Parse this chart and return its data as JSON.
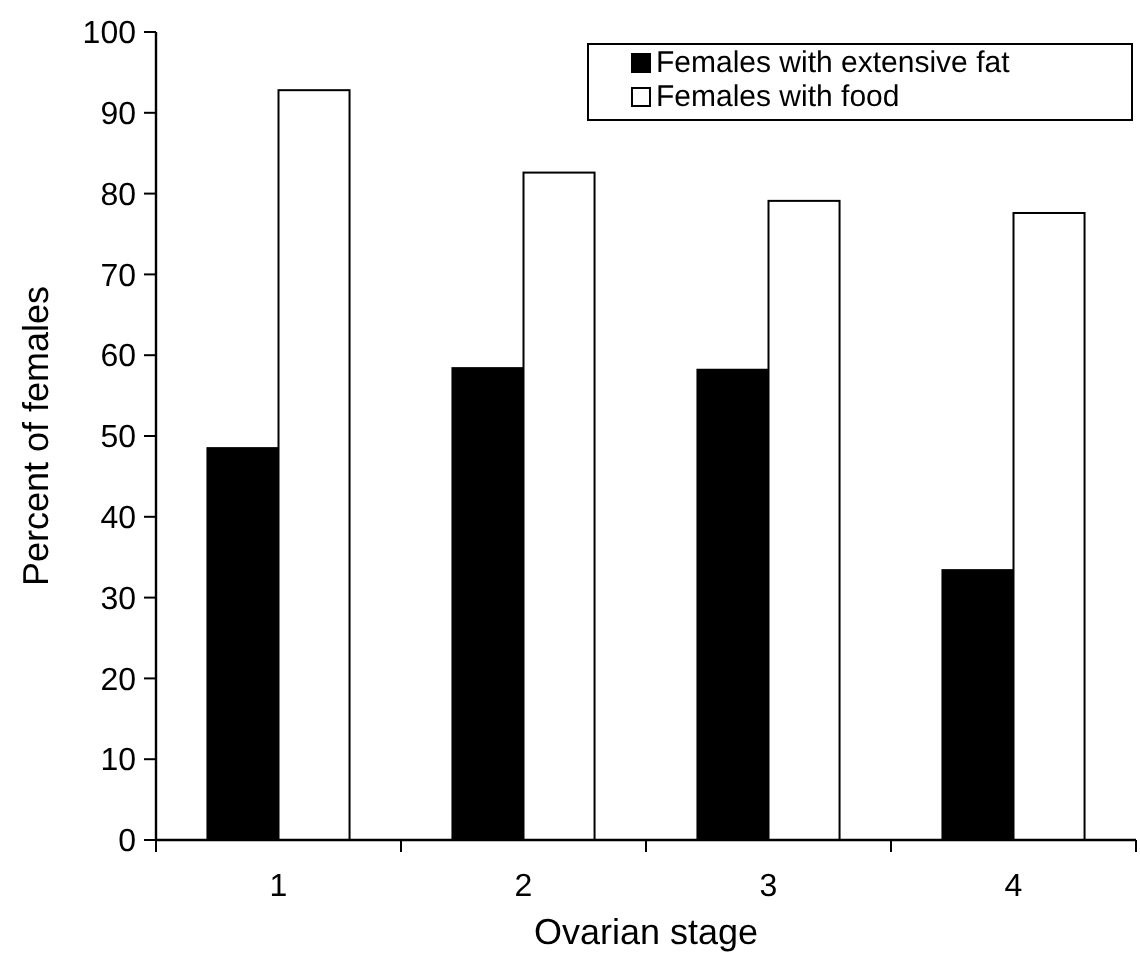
{
  "chart_data": {
    "type": "bar",
    "xlabel": "Ovarian stage",
    "ylabel": "Percent of females",
    "categories": [
      "1",
      "2",
      "3",
      "4"
    ],
    "series": [
      {
        "name": "Females with extensive fat",
        "color": "#000000",
        "values": [
          48.5,
          58.4,
          58.2,
          33.4
        ]
      },
      {
        "name": "Females with food",
        "color": "#ffffff",
        "values": [
          92.8,
          82.6,
          79.1,
          77.6
        ]
      }
    ],
    "ylim": [
      0,
      100
    ],
    "yticks": [
      0,
      10,
      20,
      30,
      40,
      50,
      60,
      70,
      80,
      90,
      100
    ],
    "grid": false,
    "legend": "top right"
  }
}
